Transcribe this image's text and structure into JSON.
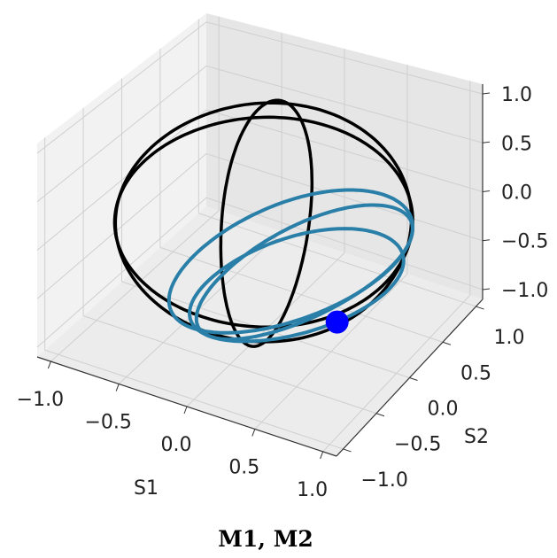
{
  "caption": "M1, M2",
  "colors": {
    "pane_left": "#f2f2f2",
    "pane_right": "#e6e6e6",
    "pane_floor": "#ececec",
    "grid": "#cfcfcf",
    "m1_line": "#000000",
    "m2_line": "#2a7fa8",
    "marker": "#0000ff"
  },
  "chart_data": {
    "type": "line3d",
    "title": "",
    "xlabel": "S1",
    "ylabel": "S2",
    "zlabel": "",
    "xlim": [
      -1.1,
      1.1
    ],
    "ylim": [
      -1.1,
      1.1
    ],
    "zlim": [
      -1.1,
      1.1
    ],
    "xticks": [
      "−1.0",
      "−0.5",
      "0.0",
      "0.5",
      "1.0"
    ],
    "yticks": [
      "−1.0",
      "−0.5",
      "0.0",
      "0.5",
      "1.0"
    ],
    "zticks": [
      "−1.0",
      "−0.5",
      "0.0",
      "0.5",
      "1.0"
    ],
    "grid": true,
    "series": [
      {
        "color": "#000000",
        "description": "several tilted great-circle loops on the unit sphere",
        "loops": [
          {
            "normal": [
              0.15,
              -0.35,
              0.92
            ]
          },
          {
            "normal": [
              0.95,
              0.2,
              0.1
            ]
          },
          {
            "normal": [
              0.55,
              -0.75,
              0.35
            ]
          }
        ]
      },
      {
        "color": "#2a7fa8",
        "description": "small-circle loops near the (S1, S2, S3) ≈ (0.8, -0.5, -0.4) region",
        "loops": [
          {
            "normal": [
              0.75,
              -0.55,
              -0.35
            ],
            "offset": 0.45
          },
          {
            "normal": [
              0.8,
              -0.45,
              -0.4
            ],
            "offset": 0.55
          },
          {
            "normal": [
              0.7,
              -0.6,
              -0.4
            ],
            "offset": 0.65
          }
        ]
      }
    ],
    "marker": {
      "x": 0.78,
      "y": -0.45,
      "z": -0.43,
      "color": "#0000ff"
    }
  }
}
